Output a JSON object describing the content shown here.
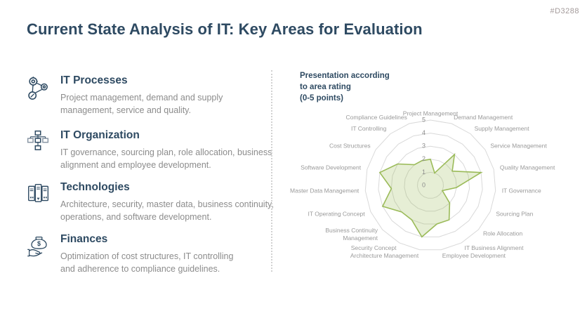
{
  "slide": {
    "doc_id": "#D3288",
    "title": "Current State Analysis of IT: Key Areas for Evaluation"
  },
  "sections": [
    {
      "icon": "process-network-icon",
      "heading": "IT Processes",
      "desc": [
        "Project management, demand and supply",
        "management, service and quality."
      ]
    },
    {
      "icon": "org-chart-icon",
      "heading": "IT Organization",
      "desc": [
        "IT governance, sourcing plan, role allocation, business",
        "alignment and employee development."
      ]
    },
    {
      "icon": "server-stack-icon",
      "heading": "Technologies",
      "desc": [
        "Architecture, security, master data, business continuity,",
        "operations, and software development."
      ]
    },
    {
      "icon": "money-bag-hand-icon",
      "heading": "Finances",
      "desc": [
        "Optimization of cost structures, IT controlling",
        "and adherence to compliance guidelines."
      ]
    }
  ],
  "chart": {
    "note_lines": [
      "Presentation according",
      "to area rating",
      "(0-5 points)"
    ]
  },
  "chart_data": {
    "type": "radar",
    "title": "Presentation according to area rating (0-5 points)",
    "categories": [
      "Project Management",
      "Demand Management",
      "Supply Management",
      "Service Management",
      "Quality Management",
      "IT Governance",
      "Sourcing Plan",
      "Role Allocation",
      "IT Business Alignment",
      "Employee Development",
      "Architecture Management",
      "Security Concept",
      "Business Continuity Management",
      "IT Operating Concept",
      "Master Data Management",
      "Software Development",
      "Cost Structures",
      "IT Controlling",
      "Compliance Guidelines"
    ],
    "values": [
      2,
      1,
      3,
      2,
      4,
      2,
      1,
      2,
      3,
      3,
      4,
      3,
      3,
      4,
      3,
      4,
      3,
      2,
      2
    ],
    "axis_range": [
      0,
      5
    ],
    "tick_labels": [
      5,
      4,
      3,
      2,
      1,
      0
    ],
    "grid": true,
    "legend": false,
    "colors": {
      "series_stroke": "#9bbb59",
      "series_fill_opacity": 0.25,
      "grid": "#d9d9d9",
      "tick_text": "#8c8c8c",
      "category_text": "#9a9a9a",
      "heading_accent": "#2e4a62",
      "body_text": "#8c8c8c",
      "doc_id_text": "#a39a9a"
    }
  }
}
